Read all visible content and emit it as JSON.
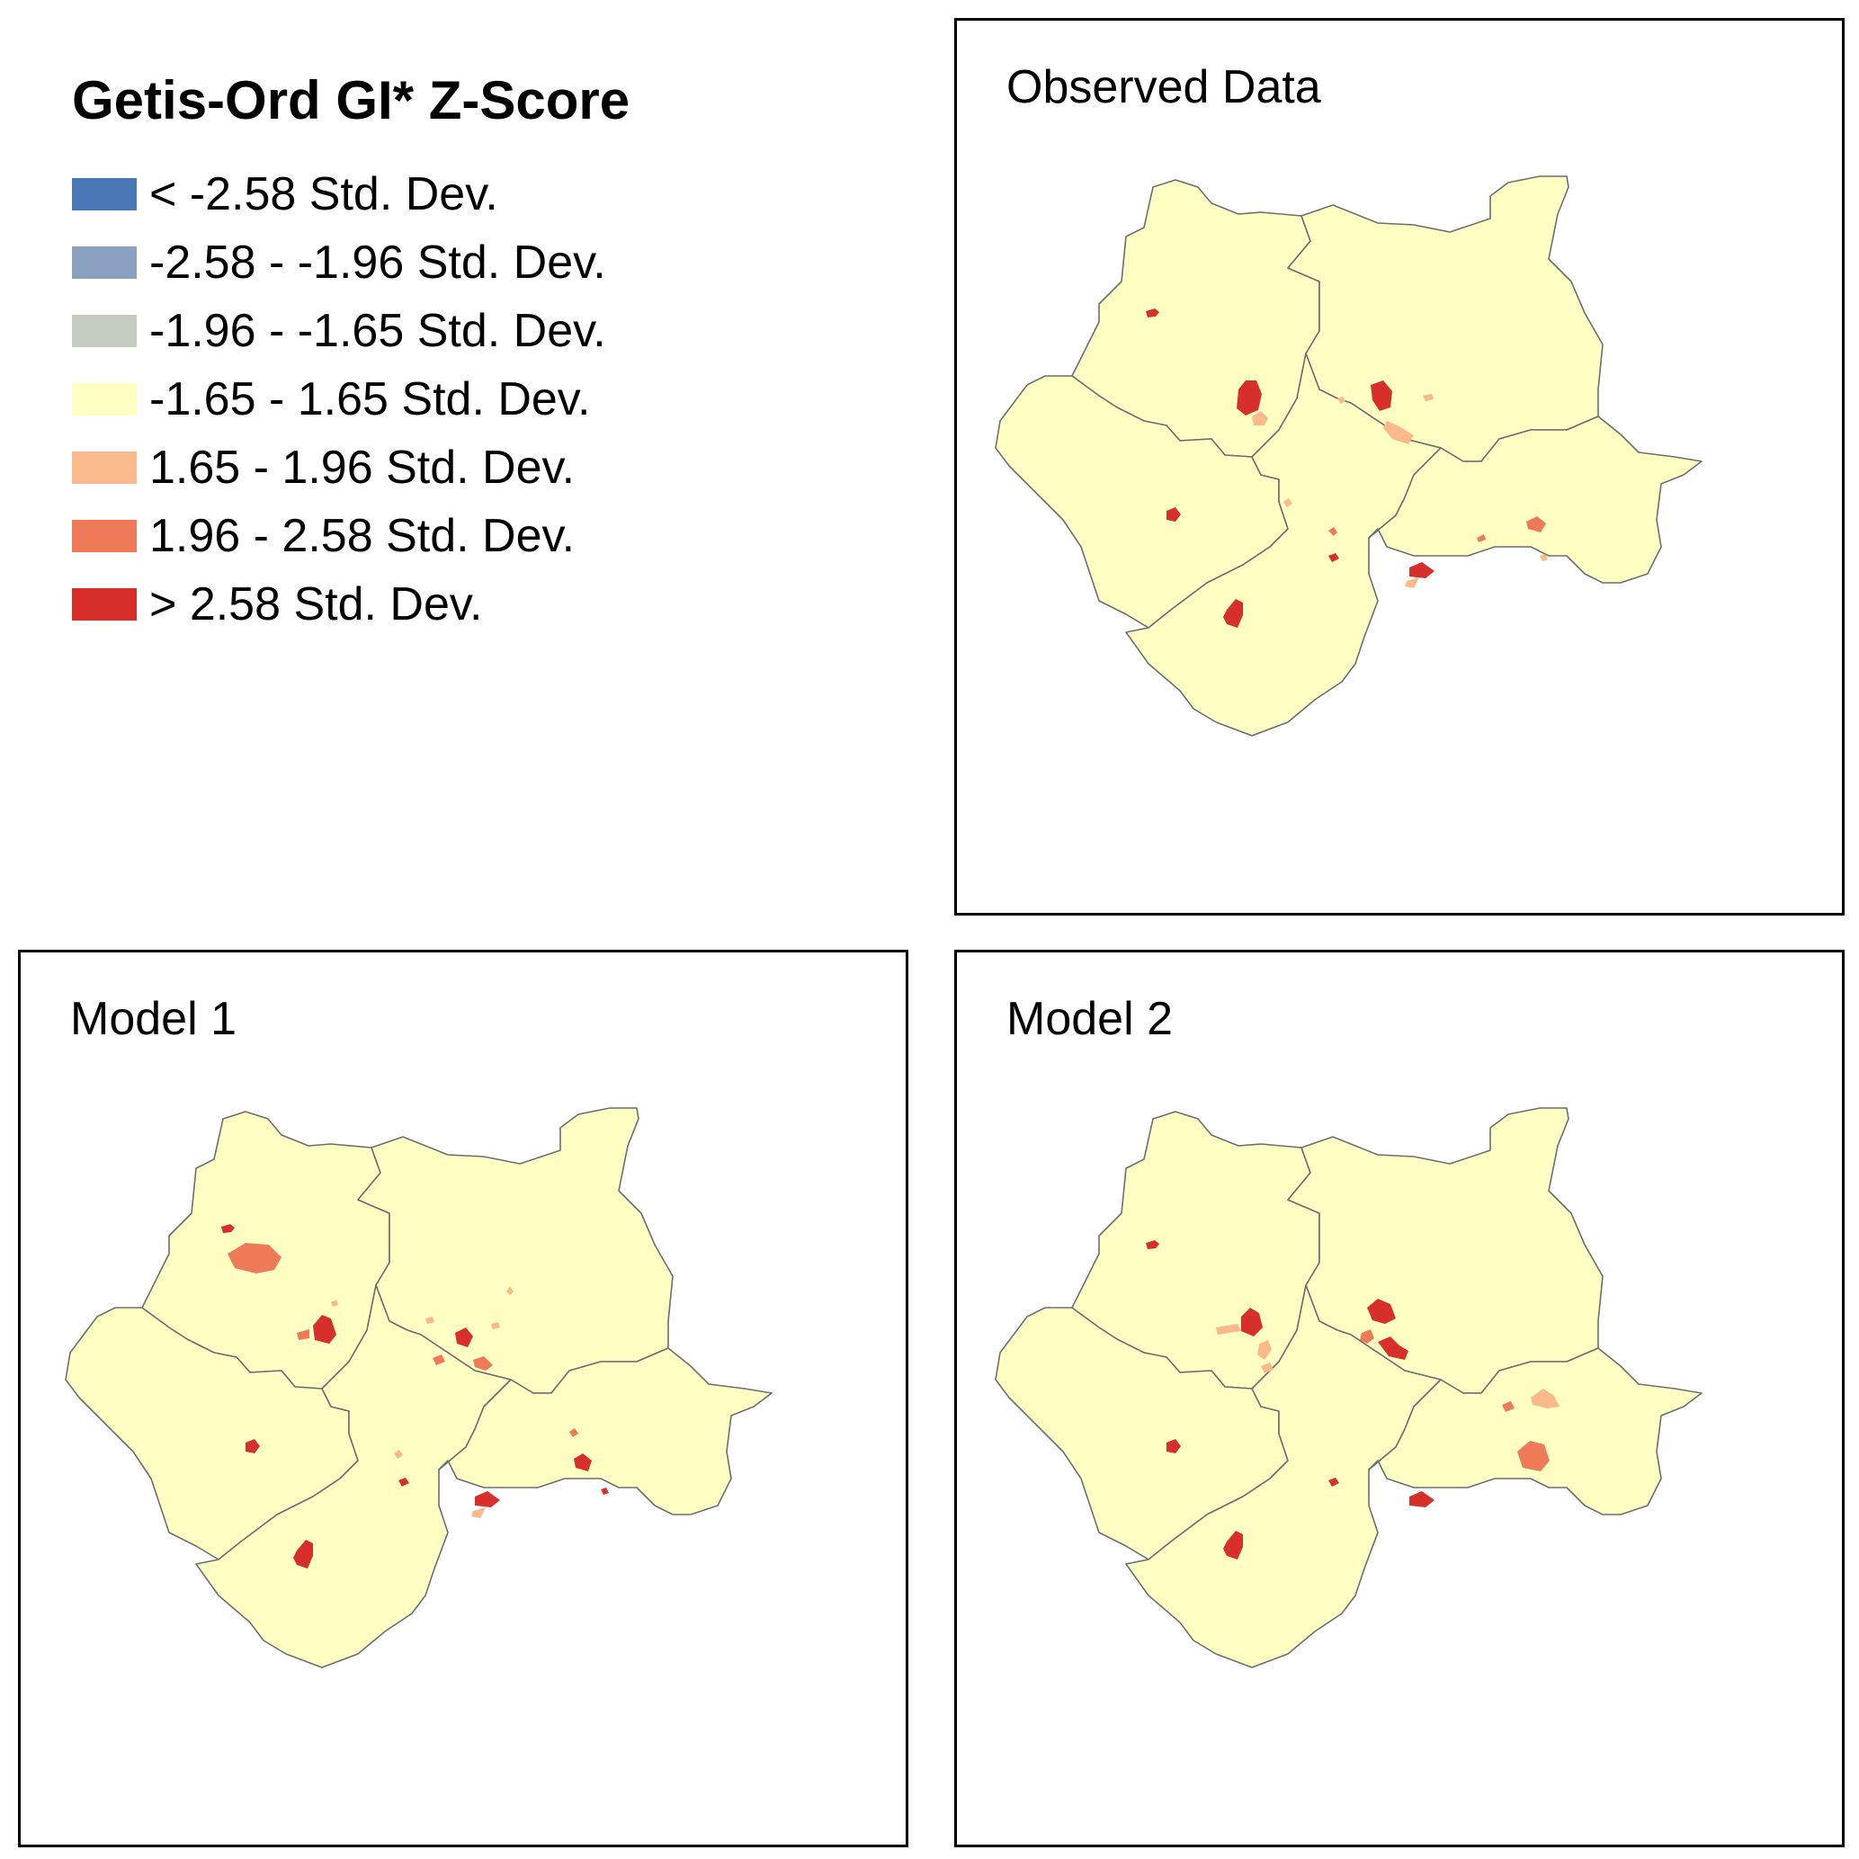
{
  "legend": {
    "title": "Getis-Ord GI* Z-Score",
    "items": [
      {
        "label": "< -2.58 Std. Dev.",
        "color": "#4a77b5"
      },
      {
        "label": "-2.58 - -1.96 Std. Dev.",
        "color": "#8aa1bf"
      },
      {
        "label": "-1.96 - -1.65 Std. Dev.",
        "color": "#c4ccc0"
      },
      {
        "label": "-1.65 - 1.65 Std. Dev.",
        "color": "#ffffc4"
      },
      {
        "label": "1.65 - 1.96 Std. Dev.",
        "color": "#f9b98a"
      },
      {
        "label": "1.96 - 2.58 Std. Dev.",
        "color": "#ee7a57"
      },
      {
        "label": "> 2.58 Std. Dev.",
        "color": "#d7302c"
      }
    ]
  },
  "panels": [
    {
      "title": "Observed Data"
    },
    {
      "title": "Model 1"
    },
    {
      "title": "Model 2"
    }
  ]
}
